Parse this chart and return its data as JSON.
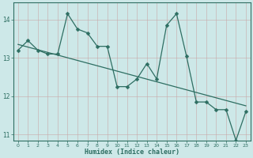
{
  "title": "",
  "xlabel": "Humidex (Indice chaleur)",
  "ylabel": "",
  "bg_color": "#cde8e8",
  "grid_color": "#b0d8d8",
  "line_color": "#2e6e62",
  "x": [
    0,
    1,
    2,
    3,
    4,
    5,
    6,
    7,
    8,
    9,
    10,
    11,
    12,
    13,
    14,
    15,
    16,
    17,
    18,
    19,
    20,
    21,
    22,
    23
  ],
  "y_main": [
    13.2,
    13.45,
    13.2,
    13.1,
    13.1,
    14.15,
    13.75,
    13.65,
    13.3,
    13.3,
    12.25,
    12.25,
    12.45,
    12.85,
    12.45,
    13.85,
    14.15,
    13.05,
    11.85,
    11.85,
    11.65,
    11.65,
    10.85,
    11.6
  ],
  "y_trend_start": 13.35,
  "y_trend_end": 11.75,
  "ylim": [
    10.85,
    14.45
  ],
  "xlim": [
    -0.5,
    23.5
  ],
  "yticks": [
    11,
    12,
    13,
    14
  ],
  "xticks": [
    0,
    1,
    2,
    3,
    4,
    5,
    6,
    7,
    8,
    9,
    10,
    11,
    12,
    13,
    14,
    15,
    16,
    17,
    18,
    19,
    20,
    21,
    22,
    23
  ],
  "marker_size": 2.5,
  "line_width": 0.9
}
